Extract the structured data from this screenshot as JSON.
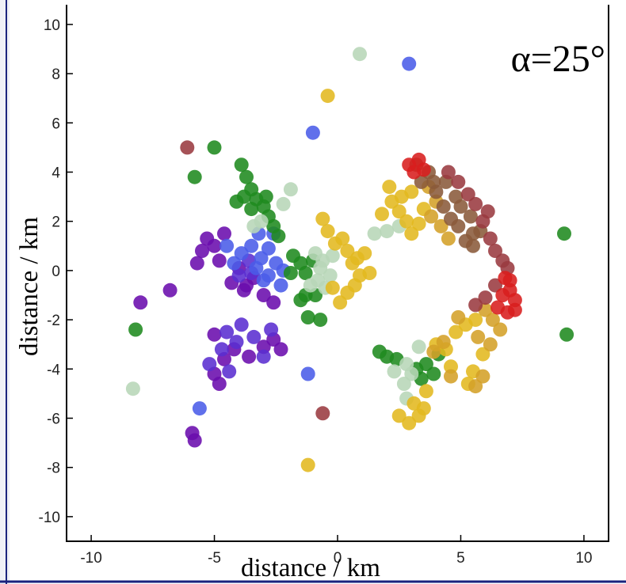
{
  "chart_data": {
    "type": "scatter",
    "title": "",
    "annotation": "α=25°",
    "xlabel": "distance / km",
    "ylabel": "distance  / km",
    "xlim": [
      -11,
      11
    ],
    "ylim": [
      -11,
      10.8
    ],
    "xticks": [
      -10,
      -5,
      0,
      5,
      10
    ],
    "yticks": [
      10,
      8,
      6,
      4,
      2,
      0,
      -2,
      -4,
      -6,
      -8,
      -10
    ],
    "grid": false,
    "legend": "none",
    "colors": {
      "purple": "#6a0dad",
      "violet": "#5a2ed0",
      "blue": "#4a5ce8",
      "green": "#1f8a1f",
      "pale_green": "#b7d6b7",
      "yellow": "#e3b81f",
      "gold": "#d4a028",
      "brown": "#8a5a3a",
      "maroon": "#9a3a40",
      "red": "#d81e1e"
    },
    "series": [
      {
        "color": "purple",
        "points": [
          [
            -5.5,
            0.8
          ],
          [
            -5.3,
            1.3
          ],
          [
            -5.0,
            1.0
          ],
          [
            -4.8,
            0.4
          ],
          [
            -5.7,
            0.3
          ],
          [
            -4.6,
            1.5
          ],
          [
            -4.3,
            -0.5
          ],
          [
            -4.0,
            0.1
          ],
          [
            -3.8,
            -0.8
          ],
          [
            -3.4,
            -0.3
          ],
          [
            -3.0,
            -1.0
          ],
          [
            -2.6,
            -1.3
          ],
          [
            -8.0,
            -1.3
          ],
          [
            -6.8,
            -0.8
          ],
          [
            -5.0,
            -2.6
          ],
          [
            -4.6,
            -3.6
          ],
          [
            -4.2,
            -3.2
          ],
          [
            -3.6,
            -3.5
          ],
          [
            -3.0,
            -3.1
          ],
          [
            -2.6,
            -2.8
          ],
          [
            -2.3,
            -3.2
          ],
          [
            -5.0,
            -4.2
          ],
          [
            -4.8,
            -4.6
          ],
          [
            -5.9,
            -6.6
          ],
          [
            -5.8,
            -6.9
          ],
          [
            -3.7,
            -0.6
          ]
        ]
      },
      {
        "color": "violet",
        "points": [
          [
            -4.5,
            -2.5
          ],
          [
            -4.1,
            -2.9
          ],
          [
            -3.9,
            -2.2
          ],
          [
            -3.4,
            -2.7
          ],
          [
            -4.7,
            -3.2
          ],
          [
            -3.0,
            -3.5
          ],
          [
            -2.7,
            -2.4
          ],
          [
            -5.2,
            -3.8
          ],
          [
            -4.4,
            -4.1
          ],
          [
            -4.0,
            -0.2
          ],
          [
            -3.5,
            -0.1
          ],
          [
            -3.6,
            0.4
          ]
        ]
      },
      {
        "color": "blue",
        "points": [
          [
            -4.2,
            0.3
          ],
          [
            -3.9,
            0.7
          ],
          [
            -3.5,
            1.0
          ],
          [
            -3.2,
            1.5
          ],
          [
            -3.1,
            0.5
          ],
          [
            -2.8,
            0.9
          ],
          [
            -2.6,
            1.5
          ],
          [
            -2.5,
            0.3
          ],
          [
            -2.2,
            0.0
          ],
          [
            -3.0,
            -0.4
          ],
          [
            -2.8,
            -0.2
          ],
          [
            -4.5,
            1.0
          ],
          [
            -2.3,
            -0.6
          ],
          [
            -3.3,
            0.1
          ]
        ]
      },
      {
        "color": "green",
        "points": [
          [
            -3.9,
            4.3
          ],
          [
            -3.7,
            3.8
          ],
          [
            -3.5,
            3.3
          ],
          [
            -3.3,
            2.9
          ],
          [
            -3.0,
            2.6
          ],
          [
            -2.8,
            2.2
          ],
          [
            -2.6,
            1.8
          ],
          [
            -2.4,
            1.4
          ],
          [
            -3.8,
            3.0
          ],
          [
            -3.5,
            2.5
          ],
          [
            -4.1,
            2.8
          ],
          [
            -2.9,
            3.0
          ],
          [
            -1.8,
            0.6
          ],
          [
            -1.5,
            0.3
          ],
          [
            -1.3,
            -0.1
          ],
          [
            -1.0,
            0.4
          ],
          [
            -1.9,
            -0.1
          ],
          [
            -1.3,
            -1.0
          ],
          [
            -1.5,
            -1.2
          ],
          [
            -0.9,
            -1.0
          ],
          [
            -1.2,
            -1.9
          ],
          [
            -0.7,
            -2.0
          ],
          [
            -5.0,
            5.0
          ],
          [
            -5.8,
            3.8
          ],
          [
            1.7,
            -3.3
          ],
          [
            2.0,
            -3.5
          ],
          [
            2.4,
            -3.6
          ],
          [
            3.2,
            -4.0
          ],
          [
            3.6,
            -3.8
          ],
          [
            3.9,
            -4.2
          ],
          [
            3.4,
            -4.4
          ],
          [
            4.1,
            -3.4
          ],
          [
            -8.2,
            -2.4
          ],
          [
            9.3,
            -2.6
          ],
          [
            9.2,
            1.5
          ]
        ]
      },
      {
        "color": "pale_green",
        "points": [
          [
            -3.4,
            1.8
          ],
          [
            -3.1,
            2.0
          ],
          [
            -2.2,
            2.7
          ],
          [
            -0.9,
            0.7
          ],
          [
            -0.6,
            0.4
          ],
          [
            -0.3,
            -0.2
          ],
          [
            -0.8,
            -0.4
          ],
          [
            -0.5,
            -0.7
          ],
          [
            -0.2,
            0.6
          ],
          [
            -1.1,
            -0.6
          ],
          [
            -0.7,
            0.1
          ],
          [
            2.0,
            1.6
          ],
          [
            1.5,
            1.5
          ],
          [
            2.5,
            1.8
          ],
          [
            2.3,
            -4.1
          ],
          [
            2.8,
            -3.8
          ],
          [
            3.0,
            -4.2
          ],
          [
            2.7,
            -4.6
          ],
          [
            3.3,
            -3.1
          ],
          [
            2.8,
            -5.2
          ],
          [
            -8.3,
            -4.8
          ],
          [
            0.9,
            8.8
          ],
          [
            -1.9,
            3.3
          ]
        ]
      },
      {
        "color": "yellow",
        "points": [
          [
            -0.6,
            2.1
          ],
          [
            -0.4,
            1.6
          ],
          [
            -0.1,
            1.1
          ],
          [
            0.2,
            1.3
          ],
          [
            0.4,
            0.8
          ],
          [
            0.6,
            0.3
          ],
          [
            0.9,
            -0.2
          ],
          [
            0.7,
            -0.6
          ],
          [
            0.4,
            -0.9
          ],
          [
            0.1,
            -1.3
          ],
          [
            0.8,
            0.5
          ],
          [
            1.3,
            -0.1
          ],
          [
            1.1,
            0.7
          ],
          [
            -0.2,
            -0.7
          ],
          [
            1.8,
            2.3
          ],
          [
            2.2,
            2.8
          ],
          [
            2.5,
            2.4
          ],
          [
            2.8,
            2.0
          ],
          [
            3.0,
            1.5
          ],
          [
            3.3,
            1.9
          ],
          [
            2.6,
            3.0
          ],
          [
            3.0,
            3.2
          ],
          [
            3.5,
            2.5
          ],
          [
            2.1,
            3.4
          ],
          [
            4.0,
            -3.0
          ],
          [
            4.4,
            -3.2
          ],
          [
            4.8,
            -2.5
          ],
          [
            5.2,
            -2.2
          ],
          [
            5.6,
            -2.0
          ],
          [
            5.9,
            -3.4
          ],
          [
            5.5,
            -4.1
          ],
          [
            5.3,
            -4.6
          ],
          [
            4.6,
            -3.9
          ],
          [
            3.6,
            -4.9
          ],
          [
            3.1,
            -5.4
          ],
          [
            2.5,
            -5.9
          ],
          [
            2.9,
            -6.2
          ],
          [
            3.5,
            -5.6
          ],
          [
            3.3,
            -5.9
          ],
          [
            -0.4,
            7.1
          ],
          [
            -1.2,
            -7.9
          ]
        ]
      },
      {
        "color": "gold",
        "points": [
          [
            3.8,
            2.2
          ],
          [
            4.2,
            1.8
          ],
          [
            4.5,
            1.3
          ],
          [
            4.0,
            2.8
          ],
          [
            3.7,
            3.4
          ],
          [
            4.9,
            -1.9
          ],
          [
            6.0,
            -1.6
          ],
          [
            6.3,
            -2.0
          ],
          [
            6.6,
            -2.4
          ],
          [
            5.7,
            -2.7
          ],
          [
            6.2,
            -3.0
          ],
          [
            5.9,
            -4.3
          ],
          [
            5.6,
            -4.7
          ],
          [
            4.3,
            -2.9
          ],
          [
            3.9,
            -3.3
          ],
          [
            4.6,
            -4.3
          ]
        ]
      },
      {
        "color": "brown",
        "points": [
          [
            3.4,
            3.6
          ],
          [
            3.7,
            4.0
          ],
          [
            4.0,
            3.2
          ],
          [
            4.3,
            2.6
          ],
          [
            4.6,
            2.1
          ],
          [
            4.9,
            1.8
          ],
          [
            5.2,
            1.2
          ],
          [
            5.5,
            1.0
          ],
          [
            5.0,
            2.6
          ],
          [
            5.4,
            2.2
          ],
          [
            5.8,
            1.6
          ],
          [
            3.2,
            4.3
          ],
          [
            4.4,
            3.6
          ],
          [
            4.8,
            3.0
          ],
          [
            5.5,
            1.5
          ],
          [
            3.9,
            3.6
          ]
        ]
      },
      {
        "color": "maroon",
        "points": [
          [
            4.9,
            3.6
          ],
          [
            5.3,
            3.1
          ],
          [
            5.6,
            2.7
          ],
          [
            5.9,
            2.0
          ],
          [
            6.2,
            1.3
          ],
          [
            6.4,
            0.8
          ],
          [
            6.7,
            0.4
          ],
          [
            6.9,
            0.1
          ],
          [
            6.4,
            -0.6
          ],
          [
            6.0,
            -1.1
          ],
          [
            5.6,
            -1.4
          ],
          [
            4.5,
            4.0
          ],
          [
            6.1,
            2.4
          ],
          [
            -0.6,
            -5.8
          ],
          [
            -6.1,
            5.0
          ]
        ]
      },
      {
        "color": "red",
        "points": [
          [
            2.9,
            4.3
          ],
          [
            3.3,
            4.5
          ],
          [
            3.5,
            4.1
          ],
          [
            3.1,
            4.0
          ],
          [
            6.8,
            -0.3
          ],
          [
            7.0,
            -0.8
          ],
          [
            7.2,
            -1.2
          ],
          [
            6.7,
            -1.0
          ],
          [
            7.2,
            -1.6
          ],
          [
            6.9,
            -1.7
          ],
          [
            6.5,
            -1.5
          ],
          [
            7.0,
            -0.4
          ]
        ]
      },
      {
        "color": "blue",
        "points": [
          [
            2.9,
            8.4
          ],
          [
            -1.0,
            5.6
          ],
          [
            -1.2,
            -4.2
          ],
          [
            -5.6,
            -5.6
          ]
        ]
      }
    ]
  }
}
